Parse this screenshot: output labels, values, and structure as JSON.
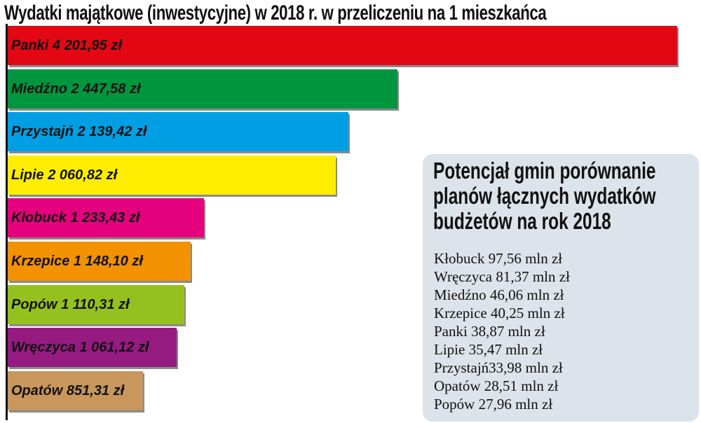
{
  "chart_data": {
    "type": "bar",
    "orientation": "horizontal",
    "title": "Wydatki majątkowe (inwestycyjne) w 2018 r. w przeliczeniu na 1 mieszkańca",
    "unit": "zł",
    "categories": [
      "Panki",
      "Miedźno",
      "Przystajń",
      "Lipie",
      "Kłobuck",
      "Krzepice",
      "Popów",
      "Wręczyca",
      "Opatów"
    ],
    "values": [
      4201.95,
      2447.58,
      2139.42,
      2060.82,
      1233.43,
      1148.1,
      1110.31,
      1061.12,
      851.31
    ],
    "labels": [
      "Panki 4 201,95 zł",
      "Miedźno 2 447,58 zł",
      "Przystajń 2 139,42 zł",
      "Lipie 2 060,82 zł",
      "Kłobuck 1 233,43 zł",
      "Krzepice 1 148,10 zł",
      "Popów 1 110,31 zł",
      "Wręczyca 1 061,12 zł",
      "Opatów 851,31 zł"
    ],
    "colors": [
      "#e30613",
      "#009640",
      "#009fe3",
      "#ffed00",
      "#e5007d",
      "#f39200",
      "#95c11f",
      "#951b81",
      "#c9975b"
    ],
    "xlim": [
      0,
      4201.95
    ],
    "grid": false,
    "legend": "none"
  },
  "panel": {
    "title_lines": [
      "Potencjał gmin porównanie",
      "planów łącznych wydatków",
      "budżetów na rok 2018"
    ],
    "items": [
      "Kłobuck 97,56 mln zł",
      "Wręczyca 81,37 mln zł",
      "Miedźno 46,06 mln zł",
      "Krzepice 40,25 mln zł",
      "Panki 38,87 mln zł",
      "Lipie 35,47 mln zł",
      "Przystajń33,98 mln zł",
      "Opatów 28,51 mln zł",
      "Popów 27,96 mln zł"
    ]
  }
}
